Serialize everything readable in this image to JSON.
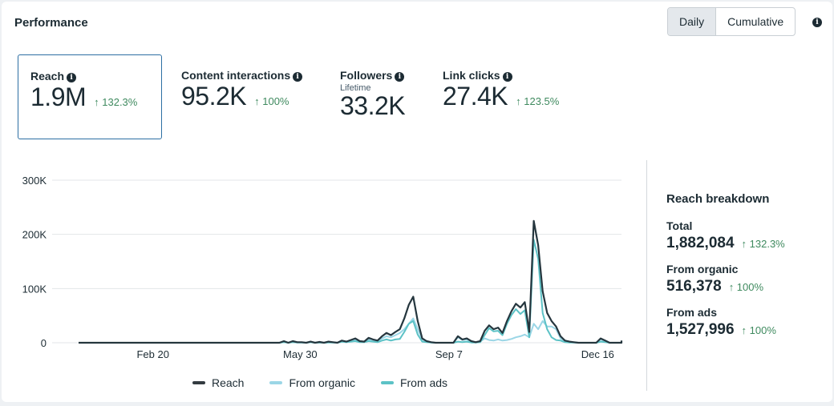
{
  "header": {
    "title": "Performance",
    "toggle": [
      {
        "label": "Daily",
        "active": true
      },
      {
        "label": "Cumulative",
        "active": false
      }
    ],
    "info_icon": "info-icon"
  },
  "metrics": [
    {
      "label": "Reach",
      "value": "1.9M",
      "change": "↑ 132.3%",
      "selected": true
    },
    {
      "label": "Content interactions",
      "value": "95.2K",
      "change": "↑ 100%"
    },
    {
      "label": "Followers",
      "sublabel": "Lifetime",
      "value": "33.2K"
    },
    {
      "label": "Link clicks",
      "value": "27.4K",
      "change": "↑ 123.5%"
    }
  ],
  "breakdown": {
    "title": "Reach breakdown",
    "items": [
      {
        "label": "Total",
        "value": "1,882,084",
        "change": "↑ 132.3%"
      },
      {
        "label": "From organic",
        "value": "516,378",
        "change": "↑ 100%"
      },
      {
        "label": "From ads",
        "value": "1,527,996",
        "change": "↑ 100%"
      }
    ]
  },
  "colors": {
    "reach": "#25363e",
    "organic": "#9bd6e6",
    "ads": "#5cc2c6",
    "up": "#3f8a5f",
    "selected_border": "#2d6fa3"
  },
  "chart_data": {
    "type": "line",
    "title": "",
    "xlabel": "",
    "ylabel": "",
    "ylim": [
      0,
      300000
    ],
    "yticks": [
      {
        "value": 0,
        "label": "0"
      },
      {
        "value": 100000,
        "label": "100K"
      },
      {
        "value": 200000,
        "label": "200K"
      },
      {
        "value": 300000,
        "label": "300K"
      }
    ],
    "x_day_range": [
      0,
      365
    ],
    "xticks": [
      {
        "day": 50,
        "label": "Feb 20"
      },
      {
        "day": 149,
        "label": "May 30"
      },
      {
        "day": 249,
        "label": "Sep 7"
      },
      {
        "day": 349,
        "label": "Dec 16"
      }
    ],
    "grid": true,
    "legend": "bottom",
    "x_step_days": 3,
    "series": [
      {
        "name": "Reach",
        "key": "reach",
        "values": [
          0,
          0,
          0,
          0,
          0,
          0,
          0,
          0,
          0,
          0,
          0,
          0,
          0,
          0,
          0,
          0,
          0,
          0,
          0,
          0,
          0,
          0,
          0,
          0,
          0,
          0,
          0,
          0,
          0,
          0,
          0,
          0,
          0,
          0,
          0,
          0,
          0,
          0,
          0,
          0,
          0,
          0,
          0,
          0,
          0,
          0,
          3000,
          0,
          3000,
          1000,
          1000,
          0,
          2000,
          0,
          1500,
          0,
          2000,
          1000,
          0,
          4000,
          2000,
          5000,
          8000,
          3000,
          2000,
          9000,
          6000,
          4000,
          12000,
          18000,
          14000,
          20000,
          25000,
          45000,
          70000,
          85000,
          40000,
          8000,
          3000,
          1000,
          0,
          0,
          0,
          0,
          0,
          12000,
          6000,
          8000,
          3000,
          1000,
          3000,
          22000,
          32000,
          25000,
          28000,
          18000,
          40000,
          58000,
          72000,
          65000,
          75000,
          20000,
          225000,
          180000,
          95000,
          55000,
          40000,
          30000,
          12000,
          4000,
          2000,
          1000,
          0,
          0,
          0,
          0,
          0,
          8000,
          4000,
          0,
          0,
          0,
          0,
          4000
        ]
      },
      {
        "name": "From organic",
        "key": "organic",
        "values": [
          0,
          0,
          0,
          0,
          0,
          0,
          0,
          0,
          0,
          0,
          0,
          0,
          0,
          0,
          0,
          0,
          0,
          0,
          0,
          0,
          0,
          0,
          0,
          0,
          0,
          0,
          0,
          0,
          0,
          0,
          0,
          0,
          0,
          0,
          0,
          0,
          0,
          0,
          0,
          0,
          0,
          0,
          0,
          0,
          0,
          0,
          2000,
          0,
          2000,
          500,
          500,
          0,
          1000,
          0,
          1000,
          0,
          1500,
          500,
          0,
          2000,
          1000,
          3000,
          5000,
          2000,
          1000,
          6000,
          4000,
          3000,
          8000,
          12000,
          10000,
          14000,
          18000,
          25000,
          35000,
          45000,
          25000,
          6000,
          2000,
          500,
          0,
          0,
          0,
          0,
          0,
          10000,
          5000,
          6000,
          2500,
          500,
          2000,
          8000,
          5000,
          4000,
          6000,
          4000,
          5000,
          7000,
          10000,
          12000,
          15000,
          10000,
          35000,
          25000,
          40000,
          30000,
          30000,
          25000,
          8000,
          3000,
          1500,
          500,
          0,
          0,
          0,
          0,
          0,
          6000,
          3000,
          0,
          0,
          0,
          0,
          3000
        ]
      },
      {
        "name": "From ads",
        "key": "ads",
        "values": [
          0,
          0,
          0,
          0,
          0,
          0,
          0,
          0,
          0,
          0,
          0,
          0,
          0,
          0,
          0,
          0,
          0,
          0,
          0,
          0,
          0,
          0,
          0,
          0,
          0,
          0,
          0,
          0,
          0,
          0,
          0,
          0,
          0,
          0,
          0,
          0,
          0,
          0,
          0,
          0,
          0,
          0,
          0,
          0,
          0,
          0,
          1000,
          0,
          1000,
          500,
          500,
          0,
          1000,
          0,
          500,
          0,
          500,
          500,
          0,
          2000,
          1000,
          2000,
          3000,
          1000,
          1000,
          3000,
          2000,
          1000,
          4000,
          6000,
          4000,
          6000,
          7000,
          20000,
          35000,
          40000,
          15000,
          2000,
          1000,
          500,
          0,
          0,
          0,
          0,
          0,
          2000,
          1000,
          2000,
          500,
          500,
          1000,
          14000,
          27000,
          21000,
          22000,
          14000,
          35000,
          51000,
          62000,
          53000,
          60000,
          10000,
          190000,
          155000,
          55000,
          25000,
          10000,
          5000,
          4000,
          1000,
          500,
          500,
          0,
          0,
          0,
          0,
          0,
          2000,
          1000,
          0,
          0,
          0,
          0,
          1000
        ]
      }
    ]
  }
}
